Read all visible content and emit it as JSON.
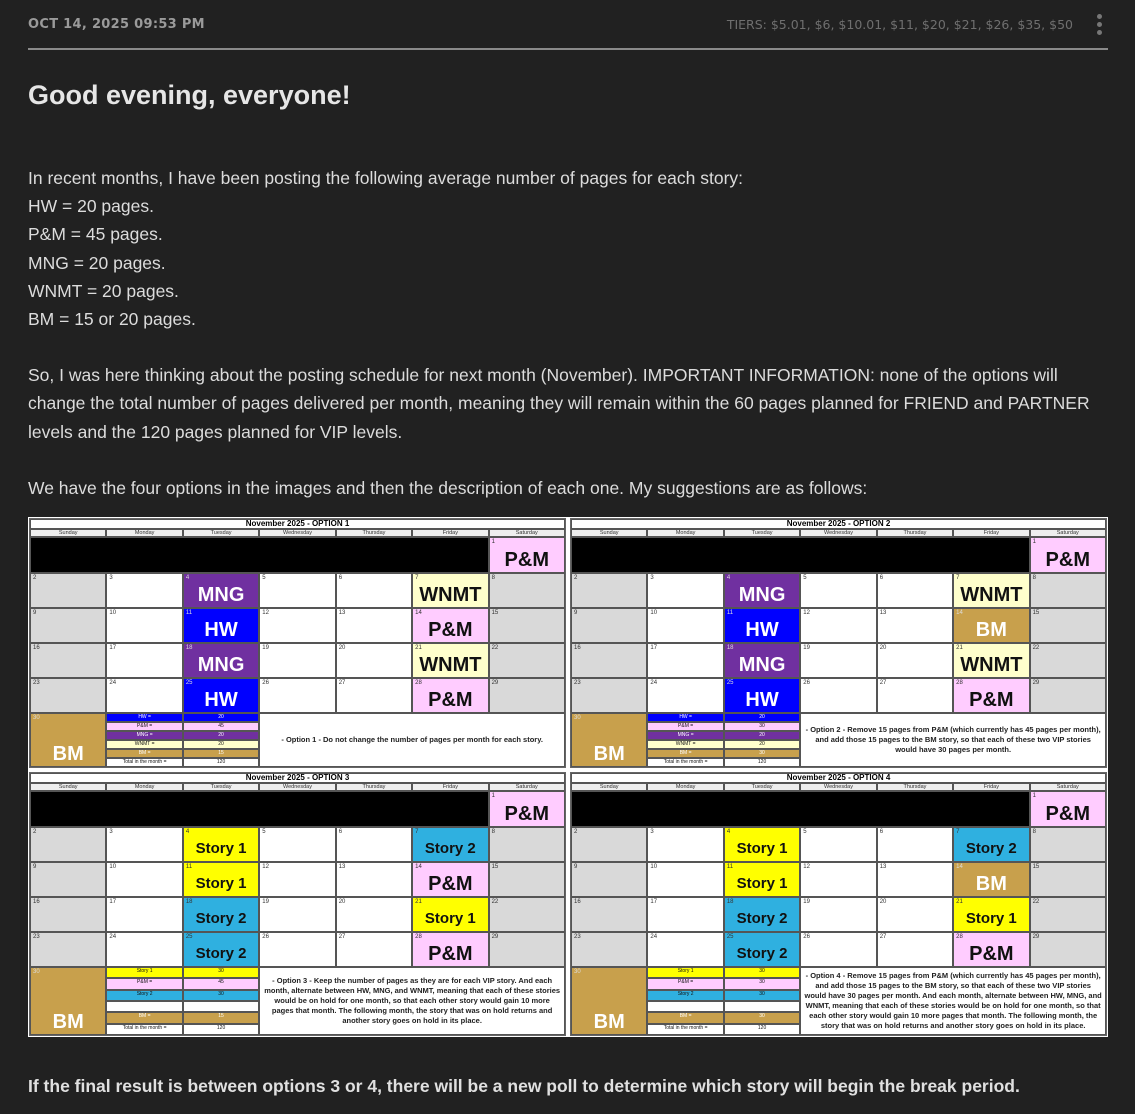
{
  "header": {
    "date": "OCT 14, 2025 09:53 PM",
    "tiers": "TIERS:  $5.01, $6, $10.01, $11, $20, $21, $26, $35, $50",
    "menu_icon": "kebab-menu-icon"
  },
  "post": {
    "title": "Good evening, everyone!",
    "intro": "In recent months, I have been posting the following average number of pages for each story:",
    "averages": [
      "HW = 20 pages.",
      "P&M = 45 pages.",
      "MNG = 20 pages.",
      "WNMT = 20 pages.",
      "BM = 15 or 20 pages."
    ],
    "para2": "So, I was here thinking about the posting schedule for next month (November). IMPORTANT INFORMATION: none of the options will change the total number of pages delivered per month, meaning they will remain within the 60 pages planned for FRIEND and PARTNER levels and the 120 pages planned for VIP levels.",
    "para3": "We have the four options in the images and then the description of each one. My suggestions are as follows:",
    "final": "If the final result is between options 3 or 4, there will be a new poll to determine which story will begin the break period."
  },
  "colors": {
    "HW": "#0000ff",
    "P&M": "#ffccff",
    "MNG": "#7030a0",
    "WNMT": "#ffffcc",
    "BM": "#c8a04c",
    "Story 1": "#ffff00",
    "Story 2": "#2fb0e0",
    "weekend": "#d9d9d9"
  },
  "days": [
    "Sunday",
    "Monday",
    "Tuesday",
    "Wednesday",
    "Thursday",
    "Friday",
    "Saturday"
  ],
  "calendars": [
    {
      "title": "November 2025 - OPTION 1",
      "entries": {
        "1": "P&M",
        "4": "MNG",
        "7": "WNMT",
        "11": "HW",
        "14": "P&M",
        "18": "MNG",
        "21": "WNMT",
        "25": "HW",
        "28": "P&M",
        "30": "BM"
      },
      "legend": [
        [
          "HW =",
          "20"
        ],
        [
          "P&M =",
          "45"
        ],
        [
          "MNG =",
          "20"
        ],
        [
          "WNMT =",
          "20"
        ],
        [
          "BM =",
          "15"
        ],
        [
          "Total in the month =",
          "120"
        ]
      ],
      "note": "- Option 1 - Do not change the number of pages per month for each story."
    },
    {
      "title": "November 2025 - OPTION 2",
      "entries": {
        "1": "P&M",
        "4": "MNG",
        "7": "WNMT",
        "11": "HW",
        "14": "BM",
        "18": "MNG",
        "21": "WNMT",
        "25": "HW",
        "28": "P&M",
        "30": "BM"
      },
      "legend": [
        [
          "HW =",
          "20"
        ],
        [
          "P&M =",
          "30"
        ],
        [
          "MNG =",
          "20"
        ],
        [
          "WNMT =",
          "20"
        ],
        [
          "BM =",
          "30"
        ],
        [
          "Total in the month =",
          "120"
        ]
      ],
      "note": "- Option 2 - Remove 15 pages from P&M (which currently has 45 pages per month), and add those 15 pages to the BM story, so that each of these two VIP stories would have 30 pages per month."
    },
    {
      "title": "November 2025 - OPTION 3",
      "entries": {
        "1": "P&M",
        "4": "Story 1",
        "7": "Story 2",
        "11": "Story 1",
        "14": "P&M",
        "18": "Story 2",
        "21": "Story 1",
        "25": "Story 2",
        "28": "P&M",
        "30": "BM"
      },
      "legend": [
        [
          "Story 1",
          "30"
        ],
        [
          "P&M =",
          "45"
        ],
        [
          "Story 2",
          "30"
        ],
        [
          "",
          ""
        ],
        [
          "BM =",
          "15"
        ],
        [
          "Total in the month =",
          "120"
        ]
      ],
      "note": "- Option 3 - Keep the number of pages as they are for each VIP story. And each month, alternate between HW, MNG, and WNMT, meaning that each of these stories would be on hold for one month, so that each other story would gain 10 more pages that month. The following month, the story that was on hold returns and another story goes on hold in its place."
    },
    {
      "title": "November 2025 - OPTION 4",
      "entries": {
        "1": "P&M",
        "4": "Story 1",
        "7": "Story 2",
        "11": "Story 1",
        "14": "BM",
        "18": "Story 2",
        "21": "Story 1",
        "25": "Story 2",
        "28": "P&M",
        "30": "BM"
      },
      "legend": [
        [
          "Story 1",
          "30"
        ],
        [
          "P&M =",
          "30"
        ],
        [
          "Story 2",
          "30"
        ],
        [
          "",
          ""
        ],
        [
          "BM =",
          "30"
        ],
        [
          "Total in the month =",
          "120"
        ]
      ],
      "note": "- Option 4 - Remove 15 pages from P&M (which currently has 45 pages per month), and add those 15 pages to the BM story, so that each of these two VIP stories would have 30 pages per month. And each month, alternate between HW, MNG, and WNMT, meaning that each of these stories would be on hold for one month, so that each other story would gain 10 more pages that month. The following month, the story that was on hold returns and another story goes on hold in its place."
    }
  ]
}
